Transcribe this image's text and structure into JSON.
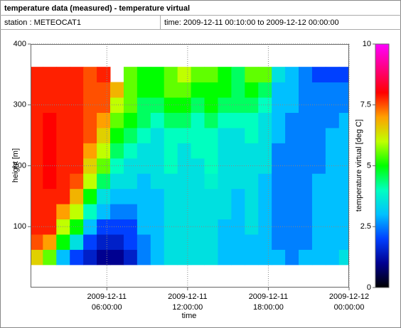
{
  "chart_data": {
    "type": "heatmap",
    "title": "temperature data (measured) - temperature virtual",
    "station": "station : METEOCAT1",
    "time_range": "time: 2009-12-11 00:10:00 to 2009-12-12 00:00:00",
    "xlabel": "time",
    "ylabel": "height [m]",
    "colorbar_label": "temperature virtual [deg C]",
    "xlim": [
      "2009-12-11 00:20:00",
      "2009-12-12 00:00:00"
    ],
    "xticks": [
      "2009-12-11 06:00:00",
      "2009-12-11 12:00:00",
      "2009-12-11 18:00:00",
      "2009-12-12 00:00:00"
    ],
    "ylim": [
      0,
      400
    ],
    "yticks": [
      100,
      200,
      300,
      400
    ],
    "clim": [
      0,
      10
    ],
    "cticks": [
      0,
      2.5,
      5,
      7.5,
      10
    ],
    "colormap": [
      "#000000",
      "#000090",
      "#0040ff",
      "#00c0ff",
      "#00ffc0",
      "#00ff00",
      "#c0ff00",
      "#ffa000",
      "#ff0000",
      "#ff0080",
      "#ff00ff"
    ],
    "grid": true,
    "x": [
      "2009-12-11 00:45:00",
      "2009-12-11 01:45:00",
      "2009-12-11 02:45:00",
      "2009-12-11 03:45:00",
      "2009-12-11 04:45:00",
      "2009-12-11 05:45:00",
      "2009-12-11 06:45:00",
      "2009-12-11 07:45:00",
      "2009-12-11 08:45:00",
      "2009-12-11 09:45:00",
      "2009-12-11 10:45:00",
      "2009-12-11 11:45:00",
      "2009-12-11 12:45:00",
      "2009-12-11 13:45:00",
      "2009-12-11 14:45:00",
      "2009-12-11 15:45:00",
      "2009-12-11 16:45:00",
      "2009-12-11 17:45:00",
      "2009-12-11 18:45:00",
      "2009-12-11 19:45:00",
      "2009-12-11 20:45:00",
      "2009-12-11 21:45:00",
      "2009-12-11 22:45:00",
      "2009-12-11 23:45:00"
    ],
    "y": [
      50,
      75,
      100,
      125,
      150,
      175,
      200,
      225,
      250,
      275,
      300,
      325,
      350
    ],
    "values": [
      [
        6.5,
        7.5,
        7.8,
        7.8,
        7.8,
        7.8,
        7.8,
        7.8,
        7.8,
        7.8,
        7.8,
        7.8,
        7.8
      ],
      [
        5.5,
        7,
        7.8,
        7.8,
        7.8,
        8,
        8,
        8,
        8,
        8,
        7.8,
        7.8,
        7.8
      ],
      [
        3,
        5,
        6,
        7,
        7.8,
        7.8,
        7.8,
        7.8,
        7.8,
        7.8,
        7.8,
        7.8,
        7.8
      ],
      [
        2,
        3.5,
        5,
        6,
        6.8,
        7.5,
        7.8,
        7.8,
        7.8,
        7.8,
        7.8,
        7.8,
        7.8
      ],
      [
        1.5,
        2,
        3,
        4,
        5,
        6,
        6.5,
        7,
        7.5,
        7.5,
        7.5,
        7.5,
        7.5
      ],
      [
        1,
        1.5,
        2,
        3,
        3.5,
        4.5,
        5.5,
        6,
        6.5,
        7,
        7.5,
        7.5,
        7.8
      ],
      [
        1,
        1.5,
        2,
        2.5,
        3,
        3.5,
        4,
        4.5,
        5,
        5.5,
        6,
        6.8,
        null
      ],
      [
        1.5,
        2,
        2,
        2.5,
        3,
        3.5,
        3.5,
        4,
        4.5,
        5,
        5.5,
        5.5,
        5.5
      ],
      [
        2.5,
        2.5,
        3,
        3,
        3,
        3,
        3.5,
        3.5,
        4,
        4.5,
        4.5,
        5,
        5
      ],
      [
        3,
        3,
        3,
        3,
        3,
        3.5,
        3.5,
        3.5,
        3.5,
        4,
        4.5,
        5,
        5
      ],
      [
        3.5,
        3.5,
        3.5,
        3.5,
        3.5,
        3.5,
        4,
        4,
        4,
        4.5,
        5,
        5.5,
        5.5
      ],
      [
        3.5,
        3.5,
        3.5,
        3.5,
        3.5,
        3.5,
        3.5,
        3.5,
        4,
        4.5,
        5,
        5.5,
        6
      ],
      [
        3.5,
        3.5,
        3.5,
        3.5,
        3.5,
        3.5,
        3.5,
        4,
        4,
        4,
        4.5,
        5,
        5.5
      ],
      [
        3.5,
        3.5,
        3.5,
        3.5,
        3.5,
        3.8,
        4,
        4,
        4,
        4.5,
        5,
        5,
        5.5
      ],
      [
        3,
        3,
        3,
        3.5,
        3.5,
        3.5,
        3.5,
        3.5,
        3.5,
        4,
        4.5,
        5,
        5
      ],
      [
        3,
        3,
        3,
        3,
        3,
        3.5,
        3.5,
        3.5,
        3.5,
        4,
        4.5,
        4.5,
        4.5
      ],
      [
        3,
        3,
        3.5,
        3.5,
        3.5,
        3.5,
        3.5,
        3.5,
        4,
        4,
        4.5,
        5,
        5.5
      ],
      [
        3,
        3,
        3,
        3,
        3,
        3,
        3.5,
        3.5,
        3.5,
        3.5,
        4,
        4.5,
        5.5
      ],
      [
        3,
        2.5,
        2.5,
        2.5,
        2.5,
        2.5,
        2.5,
        2.5,
        3,
        3,
        3,
        3,
        3.5
      ],
      [
        2.5,
        2.5,
        2.5,
        2.5,
        2.5,
        2.5,
        2.5,
        2.5,
        2.5,
        2.5,
        3,
        3,
        3
      ],
      [
        3,
        2.5,
        2.5,
        2.5,
        2.5,
        2.5,
        2.5,
        2.5,
        2.5,
        2.5,
        2.5,
        2.5,
        2.5
      ],
      [
        3,
        3,
        3,
        3,
        3,
        3,
        2.5,
        2.5,
        2.5,
        2.5,
        2.5,
        2.5,
        2
      ],
      [
        3,
        3,
        3,
        3,
        3,
        3,
        3,
        3,
        3,
        2.5,
        2.5,
        2.5,
        2
      ],
      [
        3.5,
        3,
        3,
        3,
        3,
        3,
        3,
        3,
        3,
        3,
        2.5,
        2.5,
        2
      ]
    ]
  }
}
